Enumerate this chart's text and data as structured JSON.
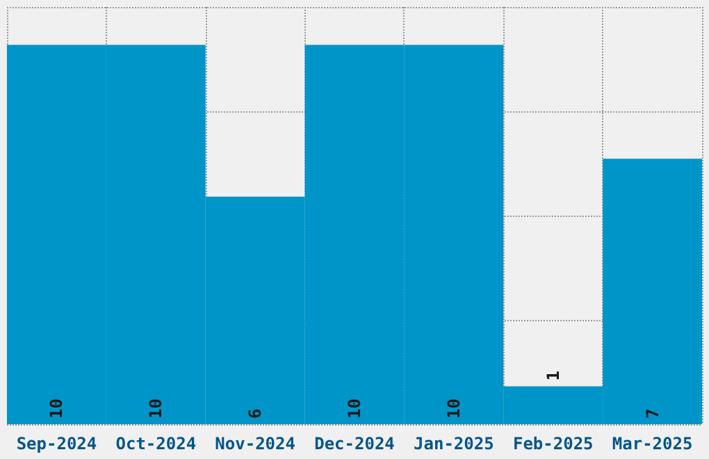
{
  "chart_data": {
    "type": "bar",
    "categories": [
      "Sep-2024",
      "Oct-2024",
      "Nov-2024",
      "Dec-2024",
      "Jan-2025",
      "Feb-2025",
      "Mar-2025"
    ],
    "values": [
      10,
      10,
      6,
      10,
      10,
      1,
      7
    ],
    "color": "#0095c8",
    "data_labels": true,
    "grid": true,
    "ylim": [
      0,
      11
    ],
    "yticks": [
      {
        "value": 0,
        "label": null
      },
      {
        "value": 2.75,
        "label": null
      },
      {
        "value": 5.5,
        "label": null
      },
      {
        "value": 8.25,
        "label": null
      },
      {
        "value": 11,
        "label": null
      }
    ],
    "tick_labels": "x"
  }
}
